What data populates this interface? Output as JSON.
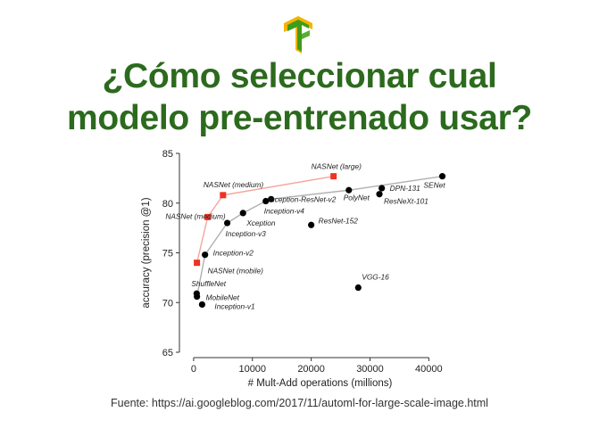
{
  "slide": {
    "title_line1": "¿Cómo seleccionar cual",
    "title_line2": "modelo pre-entrenado usar?",
    "source": "Fuente: https://ai.googleblog.com/2017/11/automl-for-large-scale-image.html",
    "logo_icon": "tensorflow-logo-icon",
    "title_color": "#2c6a1e"
  },
  "chart_data": {
    "type": "scatter",
    "xlabel": "# Mult-Add operations (millions)",
    "ylabel": "accuracy (precision @1)",
    "xlim": [
      -1500,
      44500
    ],
    "ylim": [
      65,
      85
    ],
    "xticks": [
      0,
      10000,
      20000,
      30000,
      40000
    ],
    "yticks": [
      65,
      70,
      75,
      80,
      85
    ],
    "grid": false,
    "series": [
      {
        "name": "",
        "marker": "circle",
        "color": "#000000",
        "points": [
          {
            "label": "ShuffleNet",
            "x": 524,
            "y": 70.9
          },
          {
            "label": "MobileNet",
            "x": 569,
            "y": 70.6
          },
          {
            "label": "Inception-v1",
            "x": 1448,
            "y": 69.8
          },
          {
            "label": "Inception-v2",
            "x": 1940,
            "y": 74.8
          },
          {
            "label": "Inception-v3",
            "x": 5720,
            "y": 78.0
          },
          {
            "label": "Xception",
            "x": 8400,
            "y": 79.0
          },
          {
            "label": "Inception-v4",
            "x": 12270,
            "y": 80.2
          },
          {
            "label": "Inception-ResNet-v2",
            "x": 13180,
            "y": 80.4
          },
          {
            "label": "ResNet-152",
            "x": 20000,
            "y": 77.8
          },
          {
            "label": "VGG-16",
            "x": 28000,
            "y": 71.5
          },
          {
            "label": "PolyNet",
            "x": 26400,
            "y": 81.3
          },
          {
            "label": "ResNeXt-101",
            "x": 31600,
            "y": 80.9
          },
          {
            "label": "DPN-131",
            "x": 32000,
            "y": 81.5
          },
          {
            "label": "SENet",
            "x": 42300,
            "y": 82.7
          }
        ]
      },
      {
        "name": "",
        "marker": "square",
        "color": "#ee3322",
        "points": [
          {
            "label": "NASNet (mobile)",
            "x": 564,
            "y": 74.0
          },
          {
            "label": "NASNet (medium)",
            "x": 2400,
            "y": 78.6
          },
          {
            "label": "NASNet (medium)",
            "x": 5000,
            "y": 80.8
          },
          {
            "label": "NASNet (large)",
            "x": 23800,
            "y": 82.7
          }
        ]
      }
    ],
    "frontier_black": [
      [
        564,
        70.6
      ],
      [
        1940,
        74.8
      ],
      [
        5720,
        78.0
      ],
      [
        8400,
        79.0
      ],
      [
        12270,
        80.2
      ],
      [
        13180,
        80.4
      ],
      [
        26400,
        81.3
      ],
      [
        42300,
        82.7
      ]
    ],
    "frontier_red": [
      [
        564,
        74.0
      ],
      [
        2400,
        78.6
      ],
      [
        5000,
        80.8
      ],
      [
        23800,
        82.7
      ]
    ],
    "frontier_black_color": "#b0b0b0",
    "frontier_red_color": "#f4a59c"
  }
}
